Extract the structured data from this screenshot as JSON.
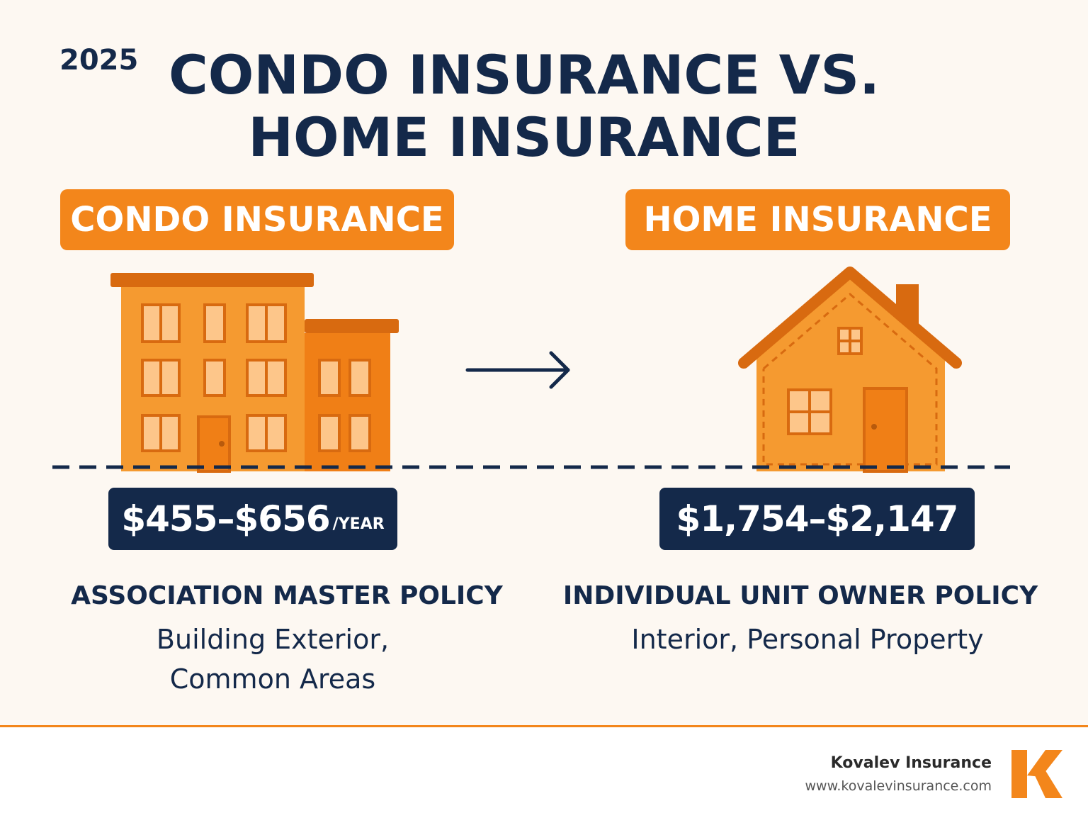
{
  "header": {
    "year": "2025",
    "title_line1": "CONDO INSURANCE VS.",
    "title_line2": "HOME INSURANCE"
  },
  "condo": {
    "label": "CONDO INSURANCE",
    "price": "$455–$656",
    "price_unit": "/YEAR",
    "policy_title": "ASSOCIATION MASTER POLICY",
    "policy_desc_line1": "Building Exterior,",
    "policy_desc_line2": "Common Areas",
    "icon": "apartment-building-icon"
  },
  "home": {
    "label": "HOME INSURANCE",
    "price": "$1,754–$2,147",
    "policy_title": "INDIVIDUAL UNIT OWNER POLICY",
    "policy_desc": "Interior, Personal Property",
    "icon": "house-icon"
  },
  "arrow_icon": "arrow-right-icon",
  "footer": {
    "brand_name": "Kovalev Insurance",
    "brand_url": "www.kovalevinsurance.com",
    "logo_icon": "k-logo-icon"
  },
  "colors": {
    "navy": "#14294a",
    "orange": "#f3861b",
    "background": "#fdf8f2"
  }
}
